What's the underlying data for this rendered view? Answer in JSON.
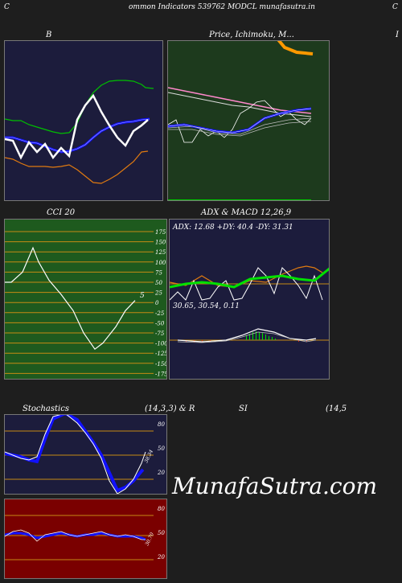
{
  "header": {
    "left_letter": "C",
    "title": "ommon  Indicators 539762  MODCL  munafasutra.in",
    "right_letter": "C"
  },
  "panels": {
    "bb": {
      "title": "B"
    },
    "price": {
      "title": "Price,  Ichimoku,  M...",
      "right_letter": "I"
    },
    "cci": {
      "title": "CCI 20",
      "last_value": "5",
      "ticks": [
        "175",
        "150",
        "125",
        "100",
        "75",
        "50",
        "25",
        "0",
        "-25",
        "-50",
        "-75",
        "-100",
        "-125",
        "-150",
        "-175"
      ]
    },
    "adx": {
      "title": "ADX  & MACD 12,26,9",
      "values_line": "ADX: 12.68   +DY: 40.4   -DY: 31.31",
      "macd_line": "30.65,  30.54,  0.11"
    },
    "stoch": {
      "title_left": "Stochastics",
      "title_right": "(14,3,3) & R",
      "ticks": [
        "80",
        "50",
        "20"
      ],
      "last_value": "38.34"
    },
    "rsi": {
      "title_mid": "SI",
      "title_right": "(14,5",
      "ticks": [
        "80",
        "50",
        "20"
      ],
      "last_value": "30.70"
    }
  },
  "watermark": "MunafaSutra.com",
  "colors": {
    "panel_navy": "#1c1c3c",
    "panel_green": "#1d3a1d",
    "panel_darkgreen": "#1e5a1e",
    "panel_red": "#7a0000",
    "line_white": "#ffffff",
    "line_blue": "#1111ff",
    "line_green": "#00c000",
    "line_orange": "#e07a10",
    "line_pink": "#ff88cc"
  },
  "chart_data": [
    {
      "type": "line",
      "name": "bollinger",
      "series": [
        {
          "values": [
            62,
            64,
            62,
            61,
            60,
            59,
            60,
            61,
            62,
            64,
            68,
            72,
            76,
            78,
            80,
            81,
            82,
            83,
            84,
            85,
            86,
            86,
            86,
            86,
            85,
            84,
            84
          ]
        },
        {
          "values": [
            58,
            58,
            56,
            55,
            55,
            54,
            53,
            52,
            52,
            54,
            56,
            59,
            62,
            64,
            65,
            66,
            67,
            68,
            69,
            70,
            70,
            71,
            71
          ]
        },
        {
          "values": [
            51,
            52,
            50,
            48,
            49,
            50,
            50,
            49,
            49,
            50,
            49,
            46,
            43,
            41,
            40,
            40,
            41,
            43,
            45,
            47,
            48,
            49,
            50
          ]
        },
        {
          "values": [
            57,
            58,
            57,
            52,
            54,
            48,
            50,
            51,
            56,
            60,
            65,
            70,
            68,
            62,
            56,
            52,
            50,
            54,
            58
          ]
        }
      ]
    },
    {
      "type": "line",
      "name": "cci",
      "values": [
        50,
        50,
        75,
        135,
        100,
        55,
        20,
        -20,
        -75,
        -115,
        -100,
        -60,
        -20,
        5
      ]
    },
    {
      "type": "line",
      "name": "adx",
      "series": [
        {
          "name": "ADX",
          "values": [
            12.68
          ]
        },
        {
          "name": "+DY",
          "values": [
            40.4
          ]
        },
        {
          "name": "-DY",
          "values": [
            31.31
          ]
        }
      ]
    },
    {
      "type": "line",
      "name": "stochastics",
      "values": [
        55,
        54,
        52,
        55,
        70,
        88,
        90,
        85,
        72,
        55,
        35,
        18,
        8,
        12,
        26,
        38.34
      ],
      "ylim": [
        0,
        100
      ]
    },
    {
      "type": "line",
      "name": "rsi",
      "values": [
        52,
        52,
        55,
        48,
        50,
        49,
        51,
        52,
        50,
        49,
        51,
        50,
        49,
        48,
        47,
        30.7
      ],
      "ylim": [
        0,
        100
      ]
    }
  ]
}
